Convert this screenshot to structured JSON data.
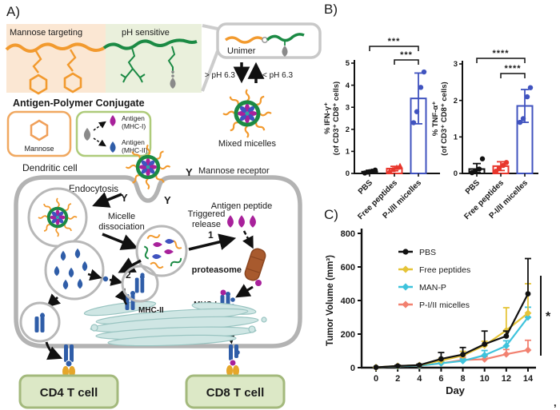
{
  "panel_a": {
    "label": "A)",
    "mannose_targeting_label": "Mannose targeting",
    "ph_sensitive_label": "pH sensitive",
    "conjugate_title": "Antigen-Polymer Conjugate",
    "mannose_label": "Mannose",
    "antigen_mhc1_line1": "Antigen",
    "antigen_mhc1_line2": "(MHC-I)",
    "antigen_mhc2_line1": "Antigen",
    "antigen_mhc2_line2": "(MHC-II)",
    "unimer_label": "Unimer",
    "ph_down_label": "> pH 6.3",
    "ph_up_label": "< pH 6.3",
    "mixed_micelles_label": "Mixed micelles",
    "dendritic_cell_label": "Dendritic cell",
    "mannose_receptor_label": "Mannose receptor",
    "endocytosis_label": "Endocytosis",
    "micelle_dissociation_line1": "Micelle",
    "micelle_dissociation_line2": "dissociation",
    "triggered_release_line1": "Triggered",
    "triggered_release_line2": "release",
    "step1_label": "1",
    "step2_label": "2",
    "antigen_peptide_label": "Antigen peptide",
    "proteasome_label": "proteasome",
    "mhc1_label": "MHC-I",
    "mhc2_label": "MHC-II",
    "cd4_label": "CD4 T cell",
    "cd8_label": "CD8 T cell"
  },
  "panel_b": {
    "label": "B)"
  },
  "panel_c": {
    "label": "C)"
  },
  "stray_mark": ",",
  "colors": {
    "polymer_orange": "#F29A2E",
    "polymer_green": "#1B8A44",
    "mannose_box_bg": "#FBE7D3",
    "ph_box_bg": "#EAF0DC",
    "membrane_gray": "#B3B3B3",
    "antigen_purple": "#A8219B",
    "antigen_blue": "#2F5DA8",
    "antigen_gray": "#8A8A8A",
    "receptor_dark_red": "#8B2020",
    "proteasome_brown": "#A85A2E",
    "er_teal": "#CFE6E4",
    "tcell_box_bg": "#DCE8C6",
    "tcell_box_border": "#A3B97C",
    "chart_black": "#111111",
    "chart_red": "#E8362C",
    "chart_blue": "#4053BF",
    "chart_yellow": "#E5C438",
    "chart_cyan": "#3EC3DC",
    "chart_salmon": "#F28170"
  },
  "chart_data": [
    {
      "type": "bar",
      "title": "",
      "categories": [
        "PBS",
        "Free peptides",
        "P-I/II micelles"
      ],
      "values": [
        0.08,
        0.22,
        3.4
      ],
      "errors": [
        0.06,
        0.1,
        1.15
      ],
      "points": [
        [
          0.02,
          0.06,
          0.1,
          0.15,
          0.08
        ],
        [
          0.12,
          0.18,
          0.28,
          0.35
        ],
        [
          2.3,
          2.8,
          3.9,
          4.6
        ]
      ],
      "point_shapes": [
        "circle",
        "triangle",
        "circle"
      ],
      "group_colors": [
        "#111111",
        "#E8362C",
        "#4053BF"
      ],
      "ylabel_line1": "% IFN-γ⁺",
      "ylabel_line2": "(of CD3⁺ CD8⁺ cells)",
      "ylim": [
        0,
        5
      ],
      "yticks": [
        0,
        1,
        2,
        3,
        4,
        5
      ],
      "significance": [
        {
          "from": 0,
          "to": 2,
          "label": "***"
        },
        {
          "from": 1,
          "to": 2,
          "label": "***"
        }
      ]
    },
    {
      "type": "bar",
      "title": "",
      "categories": [
        "PBS",
        "Free peptides",
        "P-I/II micelles"
      ],
      "values": [
        0.12,
        0.2,
        1.85
      ],
      "errors": [
        0.15,
        0.12,
        0.45
      ],
      "points": [
        [
          0.02,
          0.06,
          0.12,
          0.4
        ],
        [
          0.06,
          0.15,
          0.22,
          0.3
        ],
        [
          1.4,
          1.5,
          2.1,
          2.35
        ]
      ],
      "point_shapes": [
        "circle",
        "circle",
        "circle"
      ],
      "group_colors": [
        "#111111",
        "#E8362C",
        "#4053BF"
      ],
      "ylabel_line1": "% TNF-α⁺",
      "ylabel_line2": "(of CD3⁺ CD8⁺ cells)",
      "ylim": [
        0,
        3
      ],
      "yticks": [
        0,
        1,
        2,
        3
      ],
      "significance": [
        {
          "from": 0,
          "to": 2,
          "label": "****"
        },
        {
          "from": 1,
          "to": 2,
          "label": "****"
        }
      ]
    },
    {
      "type": "line",
      "x": [
        0,
        2,
        4,
        6,
        8,
        10,
        12,
        14
      ],
      "series": [
        {
          "name": "PBS",
          "color": "#111111",
          "marker": "circle",
          "values": [
            2,
            10,
            15,
            52,
            78,
            140,
            188,
            440
          ],
          "err": [
            0,
            4,
            5,
            38,
            42,
            78,
            30,
            210
          ]
        },
        {
          "name": "Free peptides",
          "color": "#E5C438",
          "marker": "diamond",
          "values": [
            2,
            10,
            15,
            42,
            72,
            132,
            222,
            325
          ],
          "err": [
            0,
            4,
            5,
            12,
            25,
            25,
            135,
            175
          ]
        },
        {
          "name": "MAN-P",
          "color": "#3EC3DC",
          "marker": "diamond",
          "values": [
            2,
            8,
            12,
            26,
            40,
            74,
            130,
            300
          ],
          "err": [
            0,
            3,
            4,
            8,
            12,
            28,
            30,
            60
          ]
        },
        {
          "name": "P-I/II micelles",
          "color": "#F28170",
          "marker": "diamond",
          "values": [
            2,
            8,
            12,
            26,
            46,
            50,
            80,
            105
          ],
          "err": [
            0,
            3,
            4,
            8,
            14,
            16,
            28,
            58
          ]
        }
      ],
      "xlabel": "Day",
      "ylabel": "Tumor Volume (mm³)",
      "ylim": [
        0,
        800
      ],
      "yticks": [
        0,
        200,
        400,
        600,
        800
      ],
      "legend_position": "top-left",
      "significance_label": "*"
    }
  ]
}
